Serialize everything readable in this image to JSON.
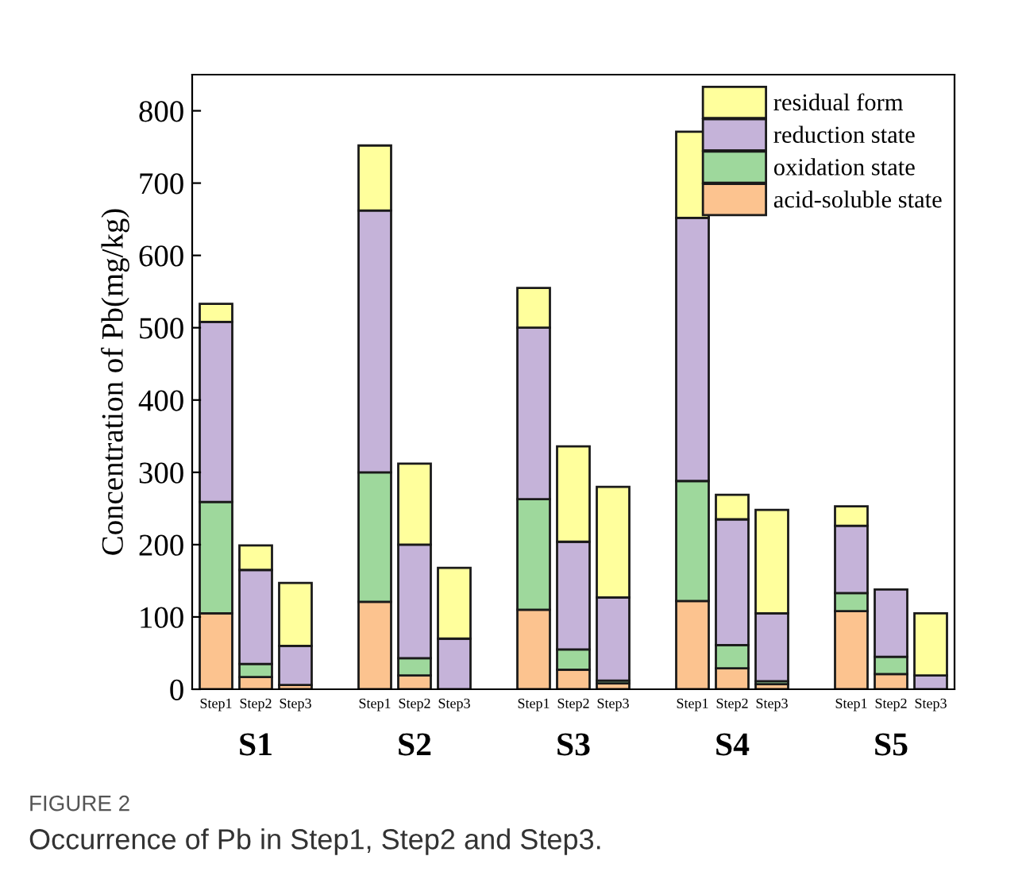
{
  "chart_data": {
    "type": "bar",
    "stacked": true,
    "ylabel": "Concentration of Pb(mg/kg)",
    "categories": [
      "Step1",
      "Step2",
      "Step3",
      null,
      "Step1",
      "Step2",
      "Step3",
      null,
      "Step1",
      "Step2",
      "Step3",
      null,
      "Step1",
      "Step2",
      "Step3",
      null,
      "Step1",
      "Step2",
      "Step3"
    ],
    "series": [
      {
        "name": "acid-soluble state",
        "color": "#fcc38f",
        "values": [
          105,
          17,
          6,
          null,
          121,
          19,
          null,
          null,
          110,
          27,
          8,
          null,
          122,
          29,
          7,
          null,
          108,
          21,
          null
        ]
      },
      {
        "name": "oxidation state",
        "color": "#9ed89c",
        "values": [
          154,
          18,
          null,
          null,
          179,
          24,
          null,
          null,
          153,
          28,
          4,
          null,
          166,
          32,
          4,
          null,
          25,
          24,
          null
        ]
      },
      {
        "name": "reduction state",
        "color": "#c5b3d9",
        "values": [
          249,
          130,
          54,
          null,
          362,
          157,
          70,
          null,
          237,
          149,
          115,
          null,
          364,
          174,
          94,
          null,
          93,
          93,
          19
        ]
      },
      {
        "name": "residual form",
        "color": "#ffff9c",
        "values": [
          25,
          34,
          87,
          null,
          90,
          112,
          98,
          null,
          55,
          132,
          153,
          null,
          119,
          34,
          143,
          null,
          27,
          null,
          86
        ]
      }
    ],
    "ylim": [
      0,
      850
    ],
    "yticks": [
      0,
      100,
      200,
      300,
      400,
      500,
      600,
      700,
      800
    ],
    "grid": false,
    "legend": "top right",
    "annotations": [
      "S1",
      "S2",
      "S3",
      "S4",
      "S5",
      "FIGURE 2",
      "Occurrence of Pb in Step1, Step2 and Step3."
    ]
  }
}
